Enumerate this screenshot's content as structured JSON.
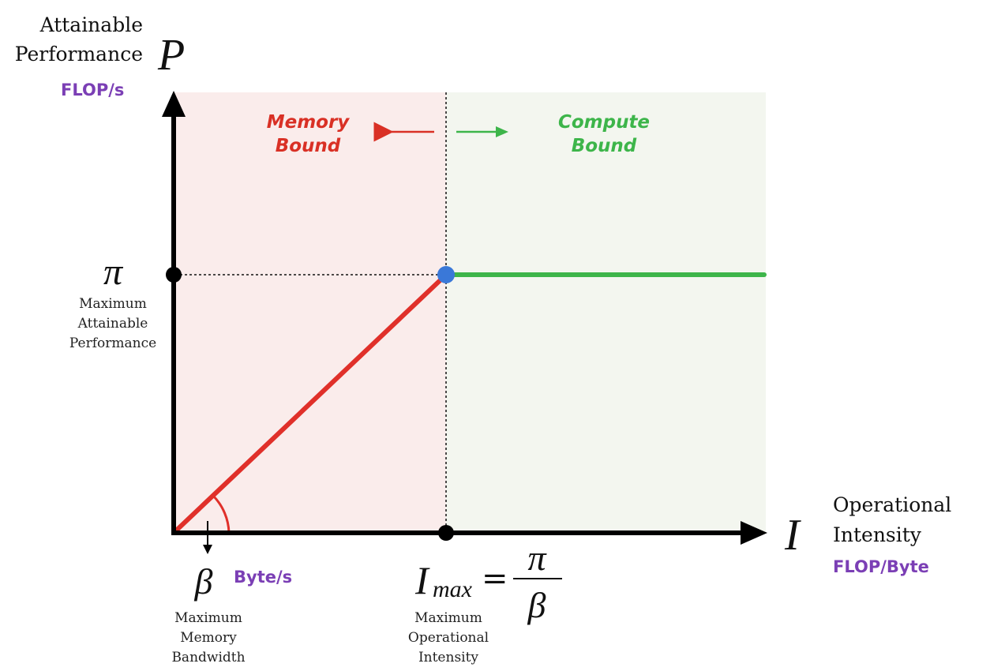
{
  "axes": {
    "y_label_line1": "Attainable",
    "y_label_line2": "Performance",
    "y_symbol": "P",
    "y_unit": "FLOP/s",
    "x_label_line1": "Operational",
    "x_label_line2": "Intensity",
    "x_symbol": "I",
    "x_unit": "FLOP/Byte"
  },
  "regions": {
    "memory_line1": "Memory",
    "memory_line2": "Bound",
    "compute_line1": "Compute",
    "compute_line2": "Bound"
  },
  "pi": {
    "symbol": "π",
    "desc_line1": "Maximum",
    "desc_line2": "Attainable",
    "desc_line3": "Performance"
  },
  "beta": {
    "symbol": "β",
    "unit": "Byte/s",
    "desc_line1": "Maximum",
    "desc_line2": "Memory",
    "desc_line3": "Bandwidth"
  },
  "imax": {
    "symbol": "I",
    "subscript": "max",
    "equals": "=",
    "numerator": "π",
    "denominator": "β",
    "desc_line1": "Maximum",
    "desc_line2": "Operational",
    "desc_line3": "Intensity"
  },
  "colors": {
    "memory": "#d93025",
    "compute": "#3db54a",
    "units": "#7b3fb5",
    "knee": "#3a78d8",
    "memory_bg": "#faeceb",
    "compute_bg": "#f3f6ef"
  }
}
